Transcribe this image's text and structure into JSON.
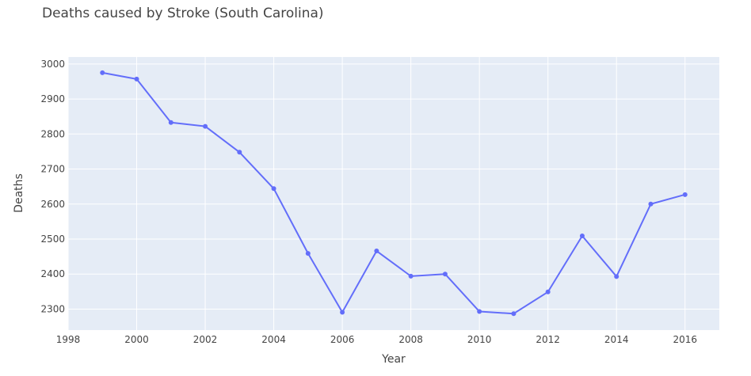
{
  "chart_data": {
    "type": "line",
    "title": "Deaths caused by Stroke (South Carolina)",
    "xlabel": "Year",
    "ylabel": "Deaths",
    "xlim": [
      1998,
      2017
    ],
    "ylim": [
      2240,
      3020
    ],
    "xticks": [
      1998,
      2000,
      2002,
      2004,
      2006,
      2008,
      2010,
      2012,
      2014,
      2016
    ],
    "yticks": [
      2300,
      2400,
      2500,
      2600,
      2700,
      2800,
      2900,
      3000
    ],
    "grid": true,
    "series": [
      {
        "color": "#636efa",
        "x": [
          1999,
          2000,
          2001,
          2002,
          2003,
          2004,
          2005,
          2006,
          2007,
          2008,
          2009,
          2010,
          2011,
          2012,
          2013,
          2014,
          2015,
          2016
        ],
        "y": [
          2975,
          2957,
          2833,
          2822,
          2748,
          2644,
          2459,
          2291,
          2466,
          2394,
          2400,
          2293,
          2287,
          2349,
          2509,
          2393,
          2600,
          2627
        ]
      }
    ]
  }
}
